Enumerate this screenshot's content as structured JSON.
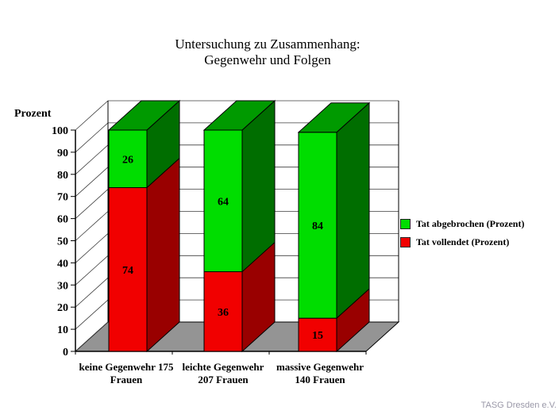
{
  "chart_data": {
    "type": "bar",
    "variant": "3d-stacked-percent",
    "title": "Untersuchung zu Zusammenhang: Gegenwehr und Folgen",
    "title_lines": [
      "Untersuchung zu Zusammenhang:",
      "Gegenwehr und Folgen"
    ],
    "ylabel": "Prozent",
    "ylim": [
      0,
      100
    ],
    "ytick_step": 10,
    "yticks": [
      0,
      10,
      20,
      30,
      40,
      50,
      60,
      70,
      80,
      90,
      100
    ],
    "grid": true,
    "categories": [
      "keine Gegenwehr 175 Frauen",
      "leichte Gegenwehr 207 Frauen",
      "massive Gegenwehr 140 Frauen"
    ],
    "category_lines": [
      [
        "keine Gegenwehr 175",
        "Frauen"
      ],
      [
        "leichte Gegenwehr",
        "207 Frauen"
      ],
      [
        "massive Gegenwehr",
        "140 Frauen"
      ]
    ],
    "series": [
      {
        "name": "Tat vollendet (Prozent)",
        "stack_position": "bottom",
        "values": [
          74,
          36,
          15
        ],
        "front_color": "#f10000",
        "side_color": "#990000"
      },
      {
        "name": "Tat abgebrochen (Prozent)",
        "stack_position": "top",
        "values": [
          26,
          64,
          84
        ],
        "front_color": "#00dd00",
        "side_color": "#006e00",
        "top_color": "#009a00"
      }
    ],
    "legend": [
      {
        "label": "Tat abgebrochen (Prozent)",
        "color": "#00dd00"
      },
      {
        "label": "Tat vollendet (Prozent)",
        "color": "#f10000"
      }
    ],
    "legend_position": "right",
    "floor_color": "#949494",
    "wall_color": "#ffffff",
    "axis_color": "#000000",
    "gridline_color": "#3c3c3c"
  },
  "credit": "TASG Dresden e.V."
}
